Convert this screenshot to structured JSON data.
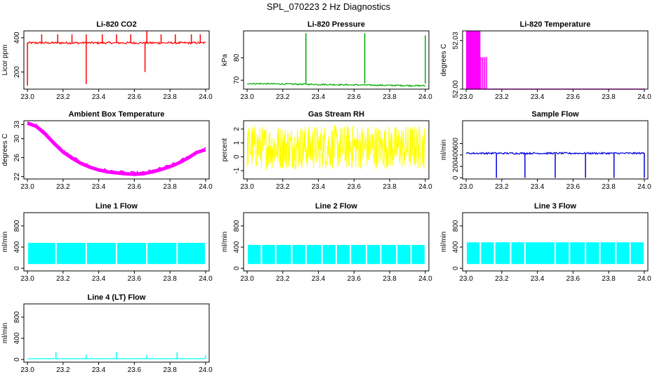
{
  "figure": {
    "title": "SPL_070223  2 Hz Diagnostics"
  },
  "chart_data": [
    {
      "type": "line",
      "title": "Li-820 CO2",
      "ylabel": "Licor ppm",
      "color": "#ff0000",
      "xlim": [
        22.98,
        24.02
      ],
      "ylim": [
        100,
        440
      ],
      "x_ticks": [
        {
          "v": 23.0,
          "label": "23.0"
        },
        {
          "v": 23.2,
          "label": "23.2"
        },
        {
          "v": 23.4,
          "label": "23.4"
        },
        {
          "v": 23.6,
          "label": "23.6"
        },
        {
          "v": 23.8,
          "label": "23.8"
        },
        {
          "v": 24.0,
          "label": "24.0"
        }
      ],
      "y_ticks": [
        {
          "v": 200,
          "label": "200"
        },
        {
          "v": 400,
          "label": "400"
        }
      ],
      "series": [
        {
          "pattern": "spiky",
          "base": 370,
          "noise": 6,
          "spikes": [
            {
              "x": 23.0,
              "y": 120
            },
            {
              "x": 23.08,
              "y": 420
            },
            {
              "x": 23.17,
              "y": 420
            },
            {
              "x": 23.25,
              "y": 420
            },
            {
              "x": 23.33,
              "y": 130
            },
            {
              "x": 23.33,
              "y": 420
            },
            {
              "x": 23.42,
              "y": 420
            },
            {
              "x": 23.5,
              "y": 420
            },
            {
              "x": 23.58,
              "y": 420
            },
            {
              "x": 23.66,
              "y": 200
            },
            {
              "x": 23.67,
              "y": 440
            },
            {
              "x": 23.75,
              "y": 420
            },
            {
              "x": 23.83,
              "y": 420
            },
            {
              "x": 23.92,
              "y": 420
            },
            {
              "x": 23.97,
              "y": 420
            }
          ]
        }
      ]
    },
    {
      "type": "line",
      "title": "Li-820 Pressure",
      "ylabel": "kPa",
      "color": "#00aa00",
      "xlim": [
        22.98,
        24.02
      ],
      "ylim": [
        66,
        92
      ],
      "x_ticks": [
        {
          "v": 23.0,
          "label": "23.0"
        },
        {
          "v": 23.2,
          "label": "23.2"
        },
        {
          "v": 23.4,
          "label": "23.4"
        },
        {
          "v": 23.6,
          "label": "23.6"
        },
        {
          "v": 23.8,
          "label": "23.8"
        },
        {
          "v": 24.0,
          "label": "24.0"
        }
      ],
      "y_ticks": [
        {
          "v": 70,
          "label": "70"
        },
        {
          "v": 80,
          "label": "80"
        }
      ],
      "series": [
        {
          "pattern": "baseline",
          "start": 68.5,
          "end": 67.5,
          "noise": 0.3,
          "spikes": [
            {
              "x": 23.33,
              "y": 91
            },
            {
              "x": 23.66,
              "y": 91
            },
            {
              "x": 24.0,
              "y": 90
            }
          ]
        }
      ]
    },
    {
      "type": "line",
      "title": "Li-820 Temperature",
      "ylabel": "degrees C",
      "color": "#ff00ff",
      "xlim": [
        22.98,
        24.02
      ],
      "ylim": [
        52.0,
        52.036
      ],
      "x_ticks": [
        {
          "v": 23.0,
          "label": "23.0"
        },
        {
          "v": 23.2,
          "label": "23.2"
        },
        {
          "v": 23.4,
          "label": "23.4"
        },
        {
          "v": 23.6,
          "label": "23.6"
        },
        {
          "v": 23.8,
          "label": "23.8"
        },
        {
          "v": 24.0,
          "label": "24.0"
        }
      ],
      "y_ticks": [
        {
          "v": 52.0,
          "label": "52.00"
        },
        {
          "v": 52.03,
          "label": "52.03"
        }
      ],
      "series": [
        {
          "pattern": "switching",
          "low": 52.0,
          "high": 52.036,
          "switch_until": 23.12,
          "solid_until": 23.08,
          "tail": 52.0
        }
      ]
    },
    {
      "type": "line",
      "title": "Ambient Box Temperature",
      "ylabel": "degrees C",
      "color": "#ff00ff",
      "xlim": [
        22.98,
        24.02
      ],
      "ylim": [
        21.5,
        33.8
      ],
      "x_ticks": [
        {
          "v": 23.0,
          "label": "23.0"
        },
        {
          "v": 23.2,
          "label": "23.2"
        },
        {
          "v": 23.4,
          "label": "23.4"
        },
        {
          "v": 23.6,
          "label": "23.6"
        },
        {
          "v": 23.8,
          "label": "23.8"
        },
        {
          "v": 24.0,
          "label": "24.0"
        }
      ],
      "y_ticks": [
        {
          "v": 22,
          "label": "22"
        },
        {
          "v": 26,
          "label": "26"
        },
        {
          "v": 30,
          "label": "30"
        },
        {
          "v": 33,
          "label": "33"
        }
      ],
      "series": [
        {
          "pattern": "curve",
          "points": [
            [
              23.0,
              33.3
            ],
            [
              23.05,
              32.6
            ],
            [
              23.1,
              31.0
            ],
            [
              23.15,
              29.0
            ],
            [
              23.2,
              27.2
            ],
            [
              23.25,
              25.9
            ],
            [
              23.3,
              24.8
            ],
            [
              23.35,
              24.0
            ],
            [
              23.4,
              23.4
            ],
            [
              23.45,
              23.0
            ],
            [
              23.5,
              22.8
            ],
            [
              23.55,
              22.6
            ],
            [
              23.6,
              22.5
            ],
            [
              23.65,
              22.6
            ],
            [
              23.7,
              23.0
            ],
            [
              23.75,
              23.5
            ],
            [
              23.8,
              24.1
            ],
            [
              23.85,
              24.9
            ],
            [
              23.9,
              25.9
            ],
            [
              23.95,
              27.1
            ],
            [
              24.0,
              27.7
            ]
          ],
          "band": 0.8
        }
      ]
    },
    {
      "type": "line",
      "title": "Gas Stream RH",
      "ylabel": "percent",
      "color": "#ffff00",
      "xlim": [
        22.98,
        24.02
      ],
      "ylim": [
        -1.6,
        2.6
      ],
      "x_ticks": [
        {
          "v": 23.0,
          "label": "23.0"
        },
        {
          "v": 23.2,
          "label": "23.2"
        },
        {
          "v": 23.4,
          "label": "23.4"
        },
        {
          "v": 23.6,
          "label": "23.6"
        },
        {
          "v": 23.8,
          "label": "23.8"
        },
        {
          "v": 24.0,
          "label": "24.0"
        }
      ],
      "y_ticks": [
        {
          "v": -1,
          "label": "-1"
        },
        {
          "v": 0,
          "label": "0"
        },
        {
          "v": 1,
          "label": "1"
        },
        {
          "v": 2,
          "label": "2"
        }
      ],
      "series": [
        {
          "pattern": "noise",
          "center": 0.7,
          "amp": 1.6
        }
      ]
    },
    {
      "type": "line",
      "title": "Sample Flow",
      "ylabel": "ml/min",
      "color": "#0000dd",
      "xlim": [
        22.98,
        24.02
      ],
      "ylim": [
        -20,
        1000
      ],
      "x_ticks": [
        {
          "v": 23.0,
          "label": "23.0"
        },
        {
          "v": 23.2,
          "label": "23.2"
        },
        {
          "v": 23.4,
          "label": "23.4"
        },
        {
          "v": 23.6,
          "label": "23.6"
        },
        {
          "v": 23.8,
          "label": "23.8"
        },
        {
          "v": 24.0,
          "label": "24.0"
        }
      ],
      "y_ticks": [
        {
          "v": 0,
          "label": "0"
        },
        {
          "v": 200,
          "label": "200"
        },
        {
          "v": 400,
          "label": "400"
        },
        {
          "v": 600,
          "label": "600"
        }
      ],
      "series": [
        {
          "pattern": "baseline",
          "start": 430,
          "end": 430,
          "noise": 15,
          "spikes": [
            {
              "x": 23.17,
              "y": 0
            },
            {
              "x": 23.33,
              "y": 0
            },
            {
              "x": 23.5,
              "y": 0
            },
            {
              "x": 23.67,
              "y": 0
            },
            {
              "x": 23.83,
              "y": 0
            },
            {
              "x": 24.0,
              "y": 0
            }
          ]
        }
      ]
    },
    {
      "type": "line",
      "title": "Line 1 Flow",
      "ylabel": "ml/min",
      "color": "#00ffff",
      "xlim": [
        22.98,
        24.02
      ],
      "ylim": [
        -50,
        1050
      ],
      "x_ticks": [
        {
          "v": 23.0,
          "label": "23.0"
        },
        {
          "v": 23.2,
          "label": "23.2"
        },
        {
          "v": 23.4,
          "label": "23.4"
        },
        {
          "v": 23.6,
          "label": "23.6"
        },
        {
          "v": 23.8,
          "label": "23.8"
        },
        {
          "v": 24.0,
          "label": "24.0"
        }
      ],
      "y_ticks": [
        {
          "v": 0,
          "label": "0"
        },
        {
          "v": 400,
          "label": "400"
        },
        {
          "v": 800,
          "label": "800"
        }
      ],
      "series": [
        {
          "pattern": "block",
          "low": 80,
          "high": 480,
          "gaps": [
            23.16,
            23.33,
            23.5,
            23.67,
            23.84,
            24.0
          ]
        }
      ]
    },
    {
      "type": "line",
      "title": "Line 2 Flow",
      "ylabel": "ml/min",
      "color": "#00ffff",
      "xlim": [
        22.98,
        24.02
      ],
      "ylim": [
        -50,
        1050
      ],
      "x_ticks": [
        {
          "v": 23.0,
          "label": "23.0"
        },
        {
          "v": 23.2,
          "label": "23.2"
        },
        {
          "v": 23.4,
          "label": "23.4"
        },
        {
          "v": 23.6,
          "label": "23.6"
        },
        {
          "v": 23.8,
          "label": "23.8"
        },
        {
          "v": 24.0,
          "label": "24.0"
        }
      ],
      "y_ticks": [
        {
          "v": 0,
          "label": "0"
        },
        {
          "v": 400,
          "label": "400"
        },
        {
          "v": 800,
          "label": "800"
        }
      ],
      "series": [
        {
          "pattern": "block",
          "low": 80,
          "high": 440,
          "gaps": [
            23.08,
            23.16,
            23.25,
            23.33,
            23.42,
            23.5,
            23.58,
            23.67,
            23.75,
            23.84,
            23.92,
            24.0
          ]
        }
      ]
    },
    {
      "type": "line",
      "title": "Line 3 Flow",
      "ylabel": "ml/min",
      "color": "#00ffff",
      "xlim": [
        22.98,
        24.02
      ],
      "ylim": [
        -50,
        1050
      ],
      "x_ticks": [
        {
          "v": 23.0,
          "label": "23.0"
        },
        {
          "v": 23.2,
          "label": "23.2"
        },
        {
          "v": 23.4,
          "label": "23.4"
        },
        {
          "v": 23.6,
          "label": "23.6"
        },
        {
          "v": 23.8,
          "label": "23.8"
        },
        {
          "v": 24.0,
          "label": "24.0"
        }
      ],
      "y_ticks": [
        {
          "v": 0,
          "label": "0"
        },
        {
          "v": 400,
          "label": "400"
        },
        {
          "v": 800,
          "label": "800"
        }
      ],
      "series": [
        {
          "pattern": "block",
          "low": 80,
          "high": 490,
          "gaps": [
            23.08,
            23.16,
            23.25,
            23.33,
            23.5,
            23.58,
            23.67,
            23.75,
            23.84,
            23.92,
            24.0
          ]
        }
      ]
    },
    {
      "type": "line",
      "title": "Line 4 (LT) Flow",
      "ylabel": "ml/min",
      "color": "#00ffff",
      "xlim": [
        22.98,
        24.02
      ],
      "ylim": [
        -50,
        1050
      ],
      "x_ticks": [
        {
          "v": 23.0,
          "label": "23.0"
        },
        {
          "v": 23.2,
          "label": "23.2"
        },
        {
          "v": 23.4,
          "label": "23.4"
        },
        {
          "v": 23.6,
          "label": "23.6"
        },
        {
          "v": 23.8,
          "label": "23.8"
        },
        {
          "v": 24.0,
          "label": "24.0"
        }
      ],
      "y_ticks": [
        {
          "v": 0,
          "label": "0"
        },
        {
          "v": 400,
          "label": "400"
        },
        {
          "v": 800,
          "label": "800"
        }
      ],
      "series": [
        {
          "pattern": "baseline",
          "start": 15,
          "end": 15,
          "noise": 3,
          "spikes": [
            {
              "x": 23.16,
              "y": 140
            },
            {
              "x": 23.33,
              "y": 80
            },
            {
              "x": 23.5,
              "y": 140
            },
            {
              "x": 23.67,
              "y": 80
            },
            {
              "x": 23.84,
              "y": 140
            },
            {
              "x": 24.0,
              "y": 80
            }
          ]
        }
      ]
    }
  ]
}
